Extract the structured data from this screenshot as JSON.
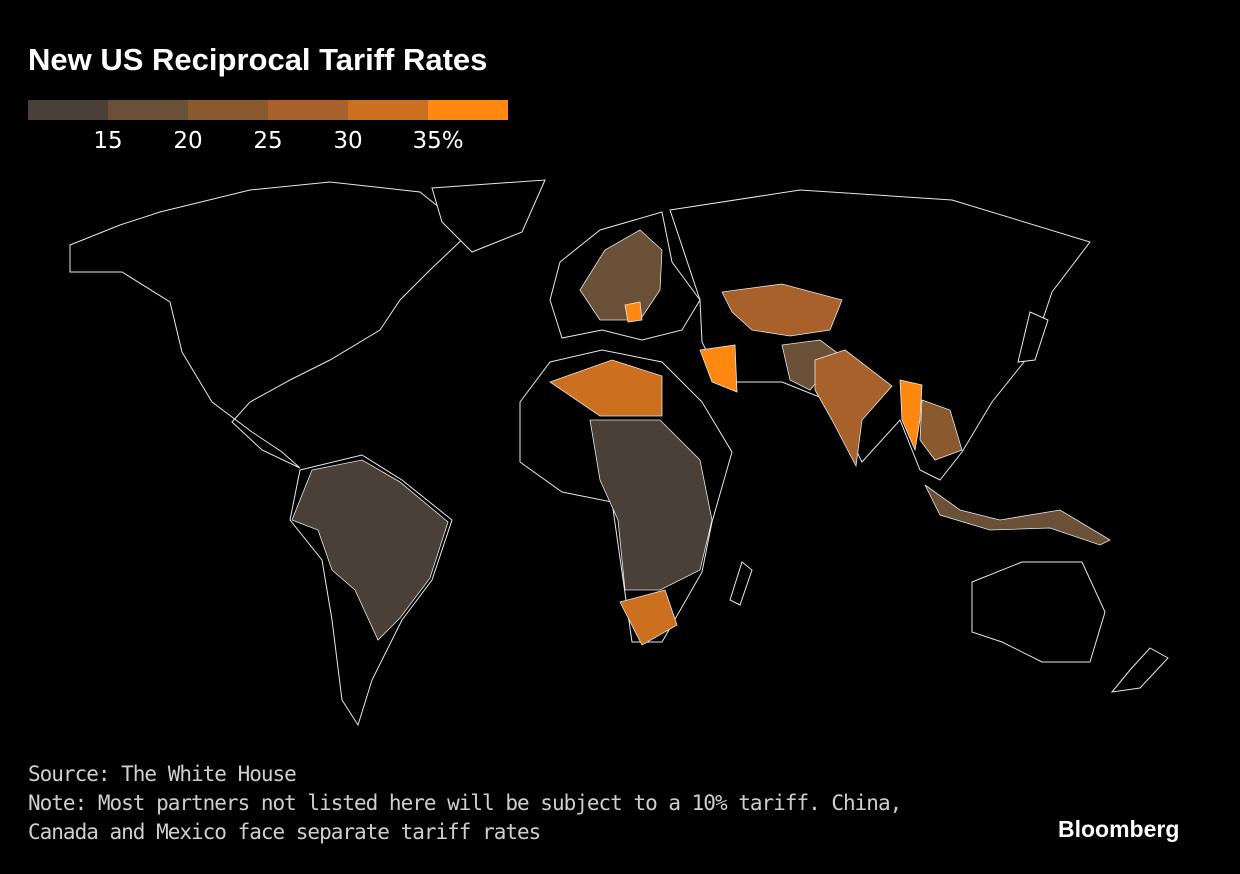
{
  "title": "New US Reciprocal Tariff Rates",
  "legend": {
    "colors": [
      "#4a4038",
      "#6b5038",
      "#8a5a2e",
      "#a8612a",
      "#cc7020",
      "#ff8811"
    ],
    "labels": [
      "15",
      "20",
      "25",
      "30",
      "35%"
    ]
  },
  "map": {
    "land_fill": "#000000",
    "outline_color": "#e8e8e8",
    "regions": [
      {
        "id": "kazakhstan",
        "rate_bin": 3
      },
      {
        "id": "india",
        "rate_bin": 3
      },
      {
        "id": "myanmar-laos",
        "rate_bin": 5
      },
      {
        "id": "thailand-cambodia",
        "rate_bin": 2
      },
      {
        "id": "algeria-libya",
        "rate_bin": 4
      },
      {
        "id": "iraq-syria",
        "rate_bin": 5
      },
      {
        "id": "south-africa",
        "rate_bin": 4
      },
      {
        "id": "serbia-bosnia",
        "rate_bin": 5
      },
      {
        "id": "brazil-south-america",
        "rate_bin": 0
      },
      {
        "id": "central-africa",
        "rate_bin": 0
      },
      {
        "id": "pakistan-afghanistan",
        "rate_bin": 1
      },
      {
        "id": "indonesia",
        "rate_bin": 1
      },
      {
        "id": "europe",
        "rate_bin": 1
      }
    ]
  },
  "footer": {
    "source": "Source: The White House",
    "note_line1": "Note: Most partners not listed here will be subject to a 10% tariff. China,",
    "note_line2": "Canada and Mexico face separate tariff rates",
    "logo": "Bloomberg"
  }
}
